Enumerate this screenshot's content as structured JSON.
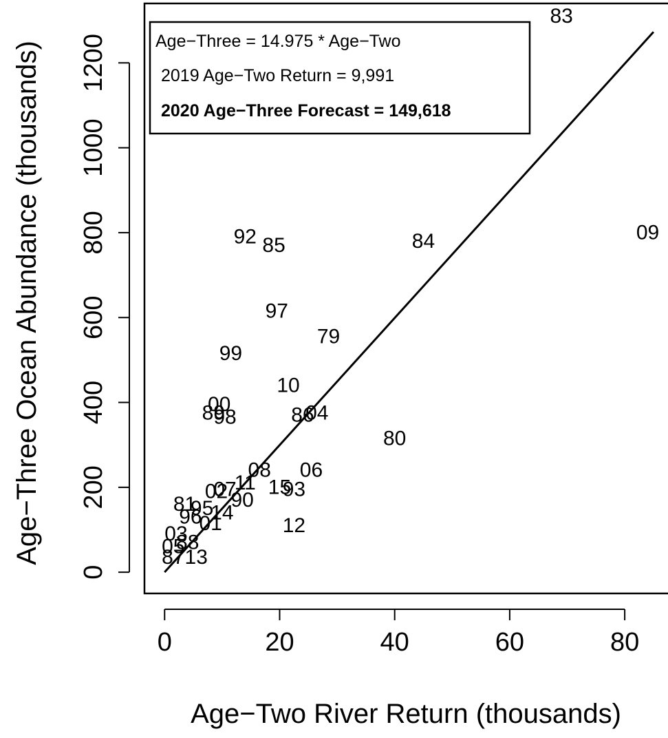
{
  "chart_data": {
    "type": "scatter",
    "xlabel": "Age−Two River Return (thousands)",
    "ylabel": "Age−Three Ocean Abundance (thousands)",
    "xlim": [
      -3.5,
      88
    ],
    "ylim": [
      -50,
      1340
    ],
    "x_ticks": [
      0,
      20,
      40,
      60,
      80
    ],
    "y_ticks": [
      0,
      200,
      400,
      600,
      800,
      1000,
      1200
    ],
    "grid": false,
    "points": [
      {
        "label": "83",
        "x": 69,
        "y": 1310
      },
      {
        "label": "09",
        "x": 84,
        "y": 800
      },
      {
        "label": "84",
        "x": 45,
        "y": 780
      },
      {
        "label": "92",
        "x": 14,
        "y": 790
      },
      {
        "label": "85",
        "x": 19,
        "y": 770
      },
      {
        "label": "97",
        "x": 19.5,
        "y": 615
      },
      {
        "label": "79",
        "x": 28.5,
        "y": 555
      },
      {
        "label": "99",
        "x": 11.5,
        "y": 515
      },
      {
        "label": "10",
        "x": 21.5,
        "y": 440
      },
      {
        "label": "00",
        "x": 9.5,
        "y": 395
      },
      {
        "label": "89",
        "x": 8.5,
        "y": 375
      },
      {
        "label": "98",
        "x": 10.5,
        "y": 365
      },
      {
        "label": "86",
        "x": 24,
        "y": 370
      },
      {
        "label": "04",
        "x": 26.5,
        "y": 375
      },
      {
        "label": "80",
        "x": 40,
        "y": 315
      },
      {
        "label": "08",
        "x": 16.5,
        "y": 240
      },
      {
        "label": "06",
        "x": 25.5,
        "y": 240
      },
      {
        "label": "11",
        "x": 14,
        "y": 210
      },
      {
        "label": "15",
        "x": 20,
        "y": 200
      },
      {
        "label": "93",
        "x": 22.5,
        "y": 195
      },
      {
        "label": "07",
        "x": 10.5,
        "y": 195
      },
      {
        "label": "02",
        "x": 9,
        "y": 190
      },
      {
        "label": "90",
        "x": 13.5,
        "y": 170
      },
      {
        "label": "81",
        "x": 3.5,
        "y": 160
      },
      {
        "label": "95",
        "x": 6.5,
        "y": 150
      },
      {
        "label": "14",
        "x": 10,
        "y": 140
      },
      {
        "label": "96",
        "x": 4.5,
        "y": 130
      },
      {
        "label": "01",
        "x": 8,
        "y": 115
      },
      {
        "label": "12",
        "x": 22.5,
        "y": 110
      },
      {
        "label": "03",
        "x": 2,
        "y": 90
      },
      {
        "label": "88",
        "x": 4,
        "y": 70
      },
      {
        "label": "05",
        "x": 1.5,
        "y": 60
      },
      {
        "label": "13",
        "x": 5.5,
        "y": 35
      },
      {
        "label": "87",
        "x": 1.5,
        "y": 35
      }
    ],
    "fit_line": {
      "slope": 14.975,
      "x_start": 0,
      "x_end": 85
    },
    "legend_position": "top-left",
    "legend": [
      {
        "text": "Age−Three = 14.975 * Age−Two",
        "bold": false
      },
      {
        "text": "2019 Age−Two Return = 9,991",
        "bold": false
      },
      {
        "text": "2020 Age−Three Forecast = 149,618",
        "bold": true
      }
    ]
  }
}
